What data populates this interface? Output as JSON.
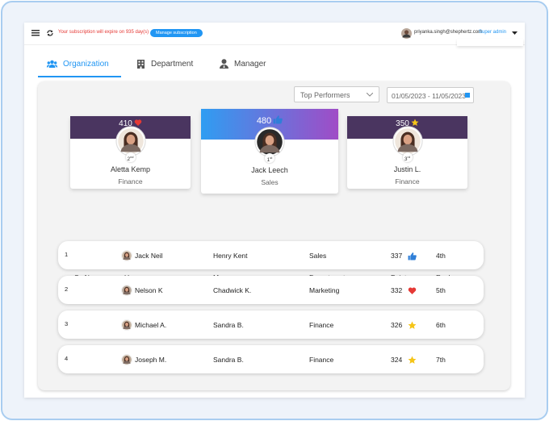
{
  "topbar": {
    "subscription_notice": "Your subscription will expire on 935 day(s)",
    "manage_button": "Manage subscription",
    "user_email": "priyanka.singh@shephertz.com",
    "user_role": "Super admin"
  },
  "tabs": [
    "Organization",
    "Department",
    "Manager"
  ],
  "filters": {
    "dropdown": "Top Performers",
    "date_range": "01/05/2023 - 11/05/2023"
  },
  "podium": [
    {
      "points": 410,
      "rank": "2",
      "rank_suffix": "nd",
      "name": "Aletta Kemp",
      "department": "Finance"
    },
    {
      "points": 480,
      "rank": "1",
      "rank_suffix": "st",
      "name": "Jack Leech",
      "department": "Sales"
    },
    {
      "points": 350,
      "rank": "3",
      "rank_suffix": "rd",
      "name": "Justin L.",
      "department": "Finance"
    }
  ],
  "table": {
    "headers": [
      "Sr. No.",
      "Username",
      "Manager",
      "Department",
      "Points",
      "Rank"
    ],
    "rows": [
      [
        1,
        "Jack Neil",
        "Henry Kent",
        "Sales",
        337,
        "4th"
      ],
      [
        2,
        "Nelson K",
        "Chadwick K.",
        "Marketing",
        332,
        "5th"
      ],
      [
        3,
        "Michael A.",
        "Sandra B.",
        "Finance",
        326,
        "6th"
      ],
      [
        4,
        "Joseph M.",
        "Sandra B.",
        "Finance",
        324,
        "7th"
      ]
    ]
  }
}
